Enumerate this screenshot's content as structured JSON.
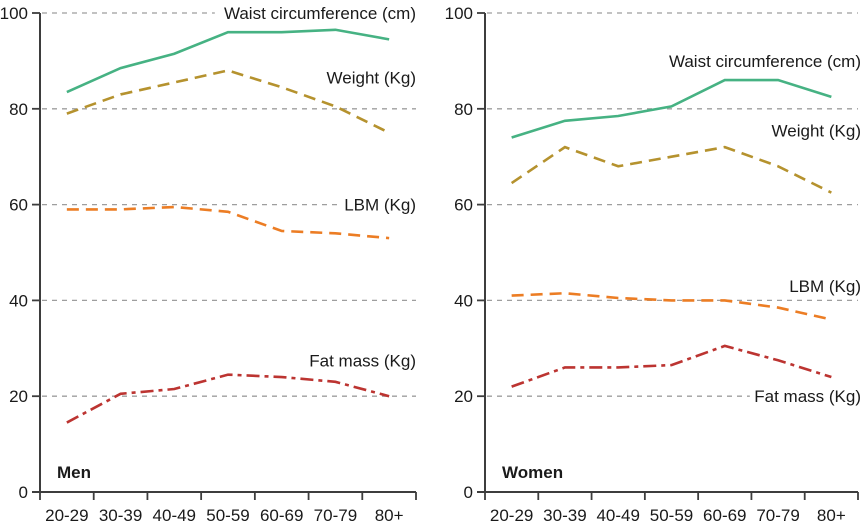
{
  "chart_data": {
    "type": "line",
    "title": "",
    "xlabel": "",
    "ylabel": "",
    "categories": [
      "20-29",
      "30-39",
      "40-49",
      "50-59",
      "60-69",
      "70-79",
      "80+"
    ],
    "ylim": [
      0,
      100
    ],
    "yticks": [
      0,
      20,
      40,
      60,
      80,
      100
    ],
    "grid": "horizontal-dashed",
    "legend_position": "inline-right-of-each-line",
    "panels": [
      {
        "label": "Men",
        "series": [
          {
            "name": "Waist circumference (cm)",
            "color": "#46b283",
            "line_style": "solid",
            "values": [
              83.5,
              88.5,
              91.5,
              96,
              96,
              96.5,
              94.5
            ],
            "label_at_y": 100
          },
          {
            "name": "Weight (Kg)",
            "color": "#b5922e",
            "line_style": "dashed",
            "values": [
              79,
              83,
              85.5,
              88,
              84.5,
              80.5,
              75
            ],
            "label_at_y": 86.5
          },
          {
            "name": "LBM (Kg)",
            "color": "#ec7d24",
            "line_style": "dashed",
            "values": [
              59,
              59,
              59.5,
              58.5,
              54.5,
              54,
              53
            ],
            "label_at_y": 60
          },
          {
            "name": "Fat mass (Kg)",
            "color": "#bc3431",
            "line_style": "dashdot",
            "values": [
              14.5,
              20.5,
              21.5,
              24.5,
              24,
              23,
              20
            ],
            "label_at_y": 27.5
          }
        ],
        "grid_clip": {
          "100": 0.465,
          "60": 0.79
        }
      },
      {
        "label": "Women",
        "series": [
          {
            "name": "Waist circumference (cm)",
            "color": "#46b283",
            "line_style": "solid",
            "values": [
              74,
              77.5,
              78.5,
              80.5,
              86,
              86,
              82.5
            ],
            "label_at_y": 90
          },
          {
            "name": "Weight (Kg)",
            "color": "#b5922e",
            "line_style": "dashed",
            "values": [
              64.5,
              72,
              68,
              70,
              72,
              68,
              62.5
            ],
            "label_at_y": 75.5
          },
          {
            "name": "LBM (Kg)",
            "color": "#ec7d24",
            "line_style": "dashed",
            "values": [
              41,
              41.5,
              40.5,
              40,
              40,
              38.5,
              36
            ],
            "label_at_y": 43
          },
          {
            "name": "Fat mass (Kg)",
            "color": "#bc3431",
            "line_style": "dashdot",
            "values": [
              22,
              26,
              26,
              26.5,
              30.5,
              27.5,
              24
            ],
            "label_at_y": 20
          }
        ],
        "grid_clip": {
          "20": 0.71
        }
      }
    ],
    "styles": {
      "axis_color": "#3d3d3d",
      "grid_color": "#9e9e9e",
      "text_color": "#1a1a1a"
    }
  }
}
